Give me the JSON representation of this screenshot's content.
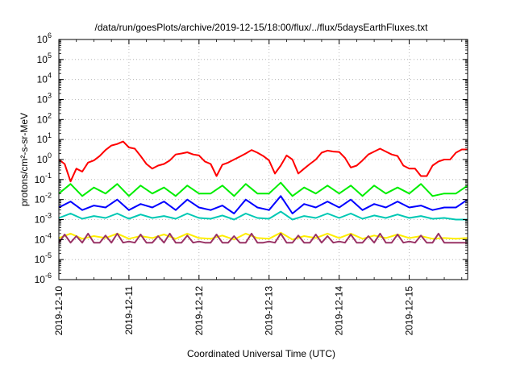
{
  "chart_data": {
    "type": "line",
    "title": "/data/run/goesPlots/archive/2019-12-15/18:00/flux/../flux/5daysEarthFluxes.txt",
    "xlabel": "Coordinated Universal Time (UTC)",
    "ylabel": "protons/cm²-s-sr-MeV",
    "yscale": "log",
    "ylim": [
      1e-06,
      1000000.0
    ],
    "xlim": [
      "2019-12-10",
      "2019-12-15T20:00"
    ],
    "x_ticks": [
      "2019-12-10",
      "2019-12-11",
      "2019-12-12",
      "2019-12-13",
      "2019-12-14",
      "2019-12-15"
    ],
    "y_ticks": [
      {
        "value": 1e-06,
        "base": "10",
        "exp": "-6"
      },
      {
        "value": 1e-05,
        "base": "10",
        "exp": "-5"
      },
      {
        "value": 0.0001,
        "base": "10",
        "exp": "-4"
      },
      {
        "value": 0.001,
        "base": "10",
        "exp": "-3"
      },
      {
        "value": 0.01,
        "base": "10",
        "exp": "-2"
      },
      {
        "value": 0.1,
        "base": "10",
        "exp": "-1"
      },
      {
        "value": 1,
        "base": "10",
        "exp": "0"
      },
      {
        "value": 10,
        "base": "10",
        "exp": "1"
      },
      {
        "value": 100,
        "base": "10",
        "exp": "2"
      },
      {
        "value": 1000,
        "base": "10",
        "exp": "3"
      },
      {
        "value": 10000,
        "base": "10",
        "exp": "4"
      },
      {
        "value": 100000,
        "base": "10",
        "exp": "5"
      },
      {
        "value": 1000000,
        "base": "10",
        "exp": "6"
      }
    ],
    "grid": true,
    "legend": "none",
    "series": [
      {
        "color": "#ff0000",
        "x": [
          "2019-12-10T00:00",
          "2019-12-10T02:00",
          "2019-12-10T04:00",
          "2019-12-10T06:00",
          "2019-12-10T08:00",
          "2019-12-10T10:00",
          "2019-12-10T12:00",
          "2019-12-10T14:00",
          "2019-12-10T16:00",
          "2019-12-10T18:00",
          "2019-12-10T20:00",
          "2019-12-10T22:00",
          "2019-12-11T00:00",
          "2019-12-11T02:00",
          "2019-12-11T04:00",
          "2019-12-11T06:00",
          "2019-12-11T08:00",
          "2019-12-11T10:00",
          "2019-12-11T12:00",
          "2019-12-11T14:00",
          "2019-12-11T16:00",
          "2019-12-11T18:00",
          "2019-12-11T20:00",
          "2019-12-11T22:00",
          "2019-12-12T00:00",
          "2019-12-12T02:00",
          "2019-12-12T04:00",
          "2019-12-12T06:00",
          "2019-12-12T08:00",
          "2019-12-12T10:00",
          "2019-12-12T12:00",
          "2019-12-12T14:00",
          "2019-12-12T16:00",
          "2019-12-12T18:00",
          "2019-12-12T20:00",
          "2019-12-12T22:00",
          "2019-12-13T00:00",
          "2019-12-13T02:00",
          "2019-12-13T04:00",
          "2019-12-13T06:00",
          "2019-12-13T08:00",
          "2019-12-13T10:00",
          "2019-12-13T12:00",
          "2019-12-13T14:00",
          "2019-12-13T16:00",
          "2019-12-13T18:00",
          "2019-12-13T20:00",
          "2019-12-13T22:00",
          "2019-12-14T00:00",
          "2019-12-14T02:00",
          "2019-12-14T04:00",
          "2019-12-14T06:00",
          "2019-12-14T08:00",
          "2019-12-14T10:00",
          "2019-12-14T12:00",
          "2019-12-14T14:00",
          "2019-12-14T16:00",
          "2019-12-14T18:00",
          "2019-12-14T20:00",
          "2019-12-14T22:00",
          "2019-12-15T00:00",
          "2019-12-15T02:00",
          "2019-12-15T04:00",
          "2019-12-15T06:00",
          "2019-12-15T08:00",
          "2019-12-15T10:00",
          "2019-12-15T12:00",
          "2019-12-15T14:00",
          "2019-12-15T16:00",
          "2019-12-15T18:00",
          "2019-12-15T20:00"
        ],
        "values": [
          1.0,
          0.6,
          0.08,
          0.35,
          0.25,
          0.7,
          0.9,
          1.5,
          3.0,
          5.0,
          6.0,
          8.0,
          4.0,
          3.5,
          1.5,
          0.6,
          0.35,
          0.5,
          0.6,
          0.9,
          1.8,
          2.0,
          2.3,
          1.8,
          1.6,
          0.8,
          0.6,
          0.15,
          0.55,
          0.7,
          1.0,
          1.4,
          2.0,
          3.0,
          2.2,
          1.5,
          0.9,
          0.2,
          0.5,
          1.6,
          1.0,
          0.2,
          0.35,
          0.6,
          1.0,
          2.2,
          2.8,
          2.5,
          2.4,
          1.2,
          0.4,
          0.5,
          0.9,
          1.8,
          2.5,
          3.5,
          2.5,
          1.8,
          1.5,
          0.5,
          0.35,
          0.35,
          0.15,
          0.15,
          0.5,
          0.8,
          1.0,
          1.0,
          2.2,
          3.2,
          3.2
        ]
      },
      {
        "color": "#00ee00",
        "x": [
          "2019-12-10T00:00",
          "2019-12-10T04:00",
          "2019-12-10T08:00",
          "2019-12-10T12:00",
          "2019-12-10T16:00",
          "2019-12-10T20:00",
          "2019-12-11T00:00",
          "2019-12-11T04:00",
          "2019-12-11T08:00",
          "2019-12-11T12:00",
          "2019-12-11T16:00",
          "2019-12-11T20:00",
          "2019-12-12T00:00",
          "2019-12-12T04:00",
          "2019-12-12T08:00",
          "2019-12-12T12:00",
          "2019-12-12T16:00",
          "2019-12-12T20:00",
          "2019-12-13T00:00",
          "2019-12-13T04:00",
          "2019-12-13T08:00",
          "2019-12-13T12:00",
          "2019-12-13T16:00",
          "2019-12-13T20:00",
          "2019-12-14T00:00",
          "2019-12-14T04:00",
          "2019-12-14T08:00",
          "2019-12-14T12:00",
          "2019-12-14T16:00",
          "2019-12-14T20:00",
          "2019-12-15T00:00",
          "2019-12-15T04:00",
          "2019-12-15T08:00",
          "2019-12-15T12:00",
          "2019-12-15T16:00",
          "2019-12-15T20:00"
        ],
        "values": [
          0.02,
          0.06,
          0.015,
          0.04,
          0.02,
          0.06,
          0.015,
          0.05,
          0.02,
          0.04,
          0.015,
          0.05,
          0.02,
          0.02,
          0.05,
          0.015,
          0.06,
          0.02,
          0.02,
          0.07,
          0.015,
          0.04,
          0.02,
          0.05,
          0.02,
          0.05,
          0.015,
          0.05,
          0.02,
          0.04,
          0.02,
          0.06,
          0.015,
          0.02,
          0.02,
          0.05
        ]
      },
      {
        "color": "#0000ff",
        "x": [
          "2019-12-10T00:00",
          "2019-12-10T04:00",
          "2019-12-10T08:00",
          "2019-12-10T12:00",
          "2019-12-10T16:00",
          "2019-12-10T20:00",
          "2019-12-11T00:00",
          "2019-12-11T04:00",
          "2019-12-11T08:00",
          "2019-12-11T12:00",
          "2019-12-11T16:00",
          "2019-12-11T20:00",
          "2019-12-12T00:00",
          "2019-12-12T04:00",
          "2019-12-12T08:00",
          "2019-12-12T12:00",
          "2019-12-12T16:00",
          "2019-12-12T20:00",
          "2019-12-13T00:00",
          "2019-12-13T04:00",
          "2019-12-13T08:00",
          "2019-12-13T12:00",
          "2019-12-13T16:00",
          "2019-12-13T20:00",
          "2019-12-14T00:00",
          "2019-12-14T04:00",
          "2019-12-14T08:00",
          "2019-12-14T12:00",
          "2019-12-14T16:00",
          "2019-12-14T20:00",
          "2019-12-15T00:00",
          "2019-12-15T04:00",
          "2019-12-15T08:00",
          "2019-12-15T12:00",
          "2019-12-15T16:00",
          "2019-12-15T20:00"
        ],
        "values": [
          0.004,
          0.008,
          0.003,
          0.005,
          0.004,
          0.01,
          0.003,
          0.006,
          0.004,
          0.008,
          0.003,
          0.01,
          0.004,
          0.003,
          0.005,
          0.002,
          0.01,
          0.004,
          0.003,
          0.015,
          0.002,
          0.006,
          0.004,
          0.008,
          0.004,
          0.01,
          0.003,
          0.006,
          0.004,
          0.008,
          0.004,
          0.005,
          0.003,
          0.004,
          0.004,
          0.01
        ]
      },
      {
        "color": "#00c8b4",
        "x": [
          "2019-12-10T00:00",
          "2019-12-10T04:00",
          "2019-12-10T08:00",
          "2019-12-10T12:00",
          "2019-12-10T16:00",
          "2019-12-10T20:00",
          "2019-12-11T00:00",
          "2019-12-11T04:00",
          "2019-12-11T08:00",
          "2019-12-11T12:00",
          "2019-12-11T16:00",
          "2019-12-11T20:00",
          "2019-12-12T00:00",
          "2019-12-12T04:00",
          "2019-12-12T08:00",
          "2019-12-12T12:00",
          "2019-12-12T16:00",
          "2019-12-12T20:00",
          "2019-12-13T00:00",
          "2019-12-13T04:00",
          "2019-12-13T08:00",
          "2019-12-13T12:00",
          "2019-12-13T16:00",
          "2019-12-13T20:00",
          "2019-12-14T00:00",
          "2019-12-14T04:00",
          "2019-12-14T08:00",
          "2019-12-14T12:00",
          "2019-12-14T16:00",
          "2019-12-14T20:00",
          "2019-12-15T00:00",
          "2019-12-15T04:00",
          "2019-12-15T08:00",
          "2019-12-15T12:00",
          "2019-12-15T16:00",
          "2019-12-15T20:00"
        ],
        "values": [
          0.0012,
          0.002,
          0.0011,
          0.0015,
          0.0012,
          0.002,
          0.0011,
          0.0018,
          0.0012,
          0.0015,
          0.0011,
          0.002,
          0.0012,
          0.0011,
          0.0016,
          0.001,
          0.002,
          0.0012,
          0.0011,
          0.0025,
          0.001,
          0.0015,
          0.0012,
          0.002,
          0.0012,
          0.002,
          0.0011,
          0.0016,
          0.0012,
          0.0018,
          0.0012,
          0.0015,
          0.0011,
          0.0012,
          0.001,
          0.001
        ]
      },
      {
        "color": "#ffee00",
        "x": [
          "2019-12-10T00:00",
          "2019-12-10T04:00",
          "2019-12-10T08:00",
          "2019-12-10T12:00",
          "2019-12-10T16:00",
          "2019-12-10T20:00",
          "2019-12-11T00:00",
          "2019-12-11T04:00",
          "2019-12-11T08:00",
          "2019-12-11T12:00",
          "2019-12-11T16:00",
          "2019-12-11T20:00",
          "2019-12-12T00:00",
          "2019-12-12T04:00",
          "2019-12-12T08:00",
          "2019-12-12T12:00",
          "2019-12-12T16:00",
          "2019-12-12T20:00",
          "2019-12-13T00:00",
          "2019-12-13T04:00",
          "2019-12-13T08:00",
          "2019-12-13T12:00",
          "2019-12-13T16:00",
          "2019-12-13T20:00",
          "2019-12-14T00:00",
          "2019-12-14T04:00",
          "2019-12-14T08:00",
          "2019-12-14T12:00",
          "2019-12-14T16:00",
          "2019-12-14T20:00",
          "2019-12-15T00:00",
          "2019-12-15T04:00",
          "2019-12-15T08:00",
          "2019-12-15T12:00",
          "2019-12-15T16:00",
          "2019-12-15T20:00"
        ],
        "values": [
          0.00012,
          0.0002,
          0.00011,
          0.00015,
          0.00012,
          0.0002,
          0.00011,
          0.00015,
          0.00012,
          0.00018,
          0.00011,
          0.0002,
          0.00012,
          0.00011,
          0.00016,
          0.0001,
          0.0002,
          0.00012,
          0.00011,
          0.00022,
          0.0001,
          0.00015,
          0.00012,
          0.0002,
          0.00012,
          0.0002,
          0.00011,
          0.00016,
          0.00012,
          0.00018,
          0.00012,
          0.00015,
          0.00011,
          0.00012,
          0.00011,
          0.00012
        ]
      },
      {
        "color": "#993366",
        "x": [
          "2019-12-10T00:00",
          "2019-12-10T02:00",
          "2019-12-10T04:00",
          "2019-12-10T06:00",
          "2019-12-10T08:00",
          "2019-12-10T10:00",
          "2019-12-10T12:00",
          "2019-12-10T14:00",
          "2019-12-10T16:00",
          "2019-12-10T18:00",
          "2019-12-10T20:00",
          "2019-12-10T22:00",
          "2019-12-11T00:00",
          "2019-12-11T02:00",
          "2019-12-11T04:00",
          "2019-12-11T06:00",
          "2019-12-11T08:00",
          "2019-12-11T10:00",
          "2019-12-11T12:00",
          "2019-12-11T14:00",
          "2019-12-11T16:00",
          "2019-12-11T18:00",
          "2019-12-11T20:00",
          "2019-12-11T22:00",
          "2019-12-12T00:00",
          "2019-12-12T02:00",
          "2019-12-12T04:00",
          "2019-12-12T06:00",
          "2019-12-12T08:00",
          "2019-12-12T10:00",
          "2019-12-12T12:00",
          "2019-12-12T14:00",
          "2019-12-12T16:00",
          "2019-12-12T18:00",
          "2019-12-12T20:00",
          "2019-12-12T22:00",
          "2019-12-13T00:00",
          "2019-12-13T02:00",
          "2019-12-13T04:00",
          "2019-12-13T06:00",
          "2019-12-13T08:00",
          "2019-12-13T10:00",
          "2019-12-13T12:00",
          "2019-12-13T14:00",
          "2019-12-13T16:00",
          "2019-12-13T18:00",
          "2019-12-13T20:00",
          "2019-12-13T22:00",
          "2019-12-14T00:00",
          "2019-12-14T02:00",
          "2019-12-14T04:00",
          "2019-12-14T06:00",
          "2019-12-14T08:00",
          "2019-12-14T10:00",
          "2019-12-14T12:00",
          "2019-12-14T14:00",
          "2019-12-14T16:00",
          "2019-12-14T18:00",
          "2019-12-14T20:00",
          "2019-12-14T22:00",
          "2019-12-15T00:00",
          "2019-12-15T02:00",
          "2019-12-15T04:00",
          "2019-12-15T06:00",
          "2019-12-15T08:00",
          "2019-12-15T10:00",
          "2019-12-15T12:00",
          "2019-12-15T14:00",
          "2019-12-15T16:00",
          "2019-12-15T18:00",
          "2019-12-15T20:00"
        ],
        "values": [
          7e-05,
          0.00018,
          7e-05,
          0.00015,
          7e-05,
          0.0002,
          7e-05,
          7e-05,
          0.00016,
          7e-05,
          0.0002,
          7e-05,
          8e-05,
          7e-05,
          0.00018,
          7e-05,
          7e-05,
          0.00015,
          7e-05,
          0.0002,
          7e-05,
          7e-05,
          0.00016,
          7e-05,
          8e-05,
          7e-05,
          7e-05,
          0.00018,
          7e-05,
          7e-05,
          0.00015,
          7e-05,
          7e-05,
          0.0002,
          7e-05,
          7e-05,
          8e-05,
          7e-05,
          0.0002,
          7e-05,
          7e-05,
          0.00016,
          7e-05,
          7e-05,
          0.00018,
          7e-05,
          0.00015,
          7e-05,
          8e-05,
          7e-05,
          0.00018,
          7e-05,
          7e-05,
          0.00015,
          7e-05,
          0.0002,
          7e-05,
          7e-05,
          0.00018,
          7e-05,
          8e-05,
          7e-05,
          0.00016,
          7e-05,
          7e-05,
          0.0002,
          7e-05,
          7e-05,
          7e-05,
          7e-05,
          7e-05
        ]
      }
    ]
  }
}
